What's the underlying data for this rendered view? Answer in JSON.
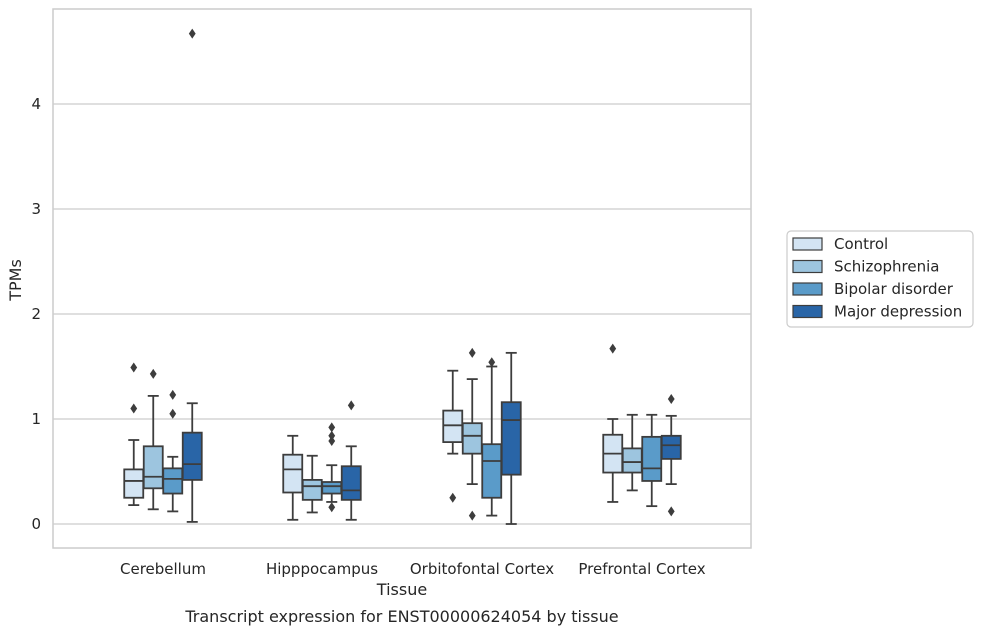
{
  "chart_data": {
    "type": "boxplot",
    "caption": "Transcript expression for ENST00000624054 by tissue",
    "xlabel": "Tissue",
    "ylabel": "TPMs",
    "ylim": [
      -0.23,
      4.9
    ],
    "yticks": [
      0,
      1,
      2,
      3,
      4
    ],
    "grid": "horizontal",
    "legend_position": "right",
    "categories": [
      "Cerebellum",
      "Hipppocampus",
      "Orbitofontal Cortex",
      "Prefrontal Cortex"
    ],
    "series": [
      {
        "name": "Control",
        "color": "#d3e4f3",
        "boxes": [
          {
            "whislo": 0.18,
            "q1": 0.25,
            "med": 0.41,
            "q3": 0.52,
            "whishi": 0.8,
            "fliers": [
              1.1,
              1.49
            ]
          },
          {
            "whislo": 0.04,
            "q1": 0.3,
            "med": 0.52,
            "q3": 0.66,
            "whishi": 0.84,
            "fliers": []
          },
          {
            "whislo": 0.67,
            "q1": 0.78,
            "med": 0.94,
            "q3": 1.08,
            "whishi": 1.46,
            "fliers": [
              0.25
            ]
          },
          {
            "whislo": 0.21,
            "q1": 0.49,
            "med": 0.67,
            "q3": 0.85,
            "whishi": 1.0,
            "fliers": [
              1.67
            ]
          }
        ]
      },
      {
        "name": "Schizophrenia",
        "color": "#9dc5df",
        "boxes": [
          {
            "whislo": 0.14,
            "q1": 0.34,
            "med": 0.45,
            "q3": 0.74,
            "whishi": 1.22,
            "fliers": [
              1.43
            ]
          },
          {
            "whislo": 0.11,
            "q1": 0.23,
            "med": 0.36,
            "q3": 0.42,
            "whishi": 0.65,
            "fliers": []
          },
          {
            "whislo": 0.38,
            "q1": 0.67,
            "med": 0.84,
            "q3": 0.96,
            "whishi": 1.38,
            "fliers": [
              0.08,
              1.63
            ]
          },
          {
            "whislo": 0.32,
            "q1": 0.49,
            "med": 0.59,
            "q3": 0.72,
            "whishi": 1.04,
            "fliers": []
          }
        ]
      },
      {
        "name": "Bipolar disorder",
        "color": "#5a9bc9",
        "boxes": [
          {
            "whislo": 0.12,
            "q1": 0.29,
            "med": 0.43,
            "q3": 0.53,
            "whishi": 0.64,
            "fliers": [
              1.05,
              1.23
            ]
          },
          {
            "whislo": 0.21,
            "q1": 0.29,
            "med": 0.36,
            "q3": 0.4,
            "whishi": 0.56,
            "fliers": [
              0.16,
              0.79,
              0.84,
              0.92
            ]
          },
          {
            "whislo": 0.08,
            "q1": 0.25,
            "med": 0.6,
            "q3": 0.76,
            "whishi": 1.5,
            "fliers": [
              1.54
            ]
          },
          {
            "whislo": 0.17,
            "q1": 0.41,
            "med": 0.53,
            "q3": 0.83,
            "whishi": 1.04,
            "fliers": []
          }
        ]
      },
      {
        "name": "Major depression",
        "color": "#2965a7",
        "boxes": [
          {
            "whislo": 0.02,
            "q1": 0.42,
            "med": 0.57,
            "q3": 0.87,
            "whishi": 1.15,
            "fliers": [
              4.67
            ]
          },
          {
            "whislo": 0.04,
            "q1": 0.23,
            "med": 0.32,
            "q3": 0.55,
            "whishi": 0.74,
            "fliers": [
              1.13
            ]
          },
          {
            "whislo": 0.0,
            "q1": 0.47,
            "med": 0.99,
            "q3": 1.16,
            "whishi": 1.63,
            "fliers": []
          },
          {
            "whislo": 0.38,
            "q1": 0.62,
            "med": 0.75,
            "q3": 0.84,
            "whishi": 1.03,
            "fliers": [
              0.12,
              1.19
            ]
          }
        ]
      }
    ]
  }
}
